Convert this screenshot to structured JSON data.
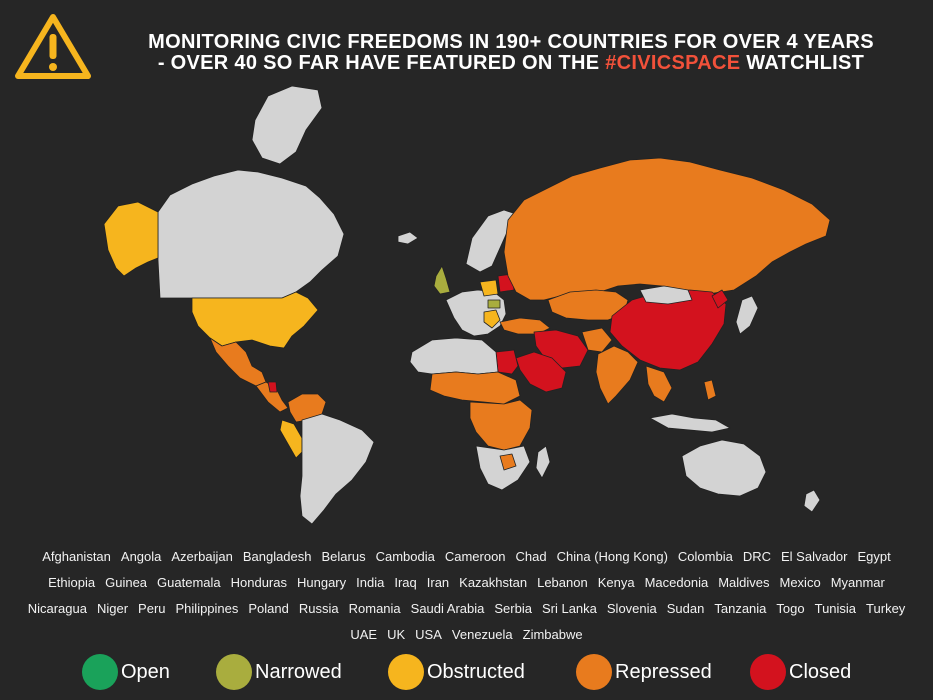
{
  "header": {
    "line1": "MONITORING CIVIC FREEDOMS IN 190+ COUNTRIES FOR OVER 4 YEARS",
    "line2_prefix": "-  OVER 40 SO FAR HAVE FEATURED ON THE",
    "hashtag": "#CIVICSPACE",
    "line2_suffix": "WATCHLIST",
    "icon": "warning-triangle-icon"
  },
  "colors": {
    "background": "#262626",
    "no_rating": "#d3d3d3",
    "open": "#1aa25a",
    "narrowed": "#a9ad3e",
    "obstructed": "#f6b51e",
    "repressed": "#e87b1e",
    "closed": "#d3121e",
    "hashtag": "#f2513a",
    "warning": "#f6b51e"
  },
  "watchlist": [
    "Afghanistan",
    "Angola",
    "Azerbaijan",
    "Bangladesh",
    "Belarus",
    "Cambodia",
    "Cameroon",
    "Chad",
    "China (Hong Kong)",
    "Colombia",
    "DRC",
    "El Salvador",
    "Egypt",
    "Ethiopia",
    "Guinea",
    "Guatemala",
    "Honduras",
    "Hungary",
    "India",
    "Iraq",
    "Iran",
    "Kazakhstan",
    "Lebanon",
    "Kenya",
    "Macedonia",
    "Maldives",
    "Mexico",
    "Myanmar",
    "Nicaragua",
    "Niger",
    "Peru",
    "Philippines",
    "Poland",
    "Russia",
    "Romania",
    "Saudi Arabia",
    "Serbia",
    "Sri Lanka",
    "Slovenia",
    "Sudan",
    "Tanzania",
    "Togo",
    "Tunisia",
    "Turkey",
    "UAE",
    "UK",
    "USA",
    "Venezuela",
    "Zimbabwe"
  ],
  "legend": [
    {
      "label": "Open",
      "color": "#1aa25a"
    },
    {
      "label": "Narrowed",
      "color": "#a9ad3e"
    },
    {
      "label": "Obstructed",
      "color": "#f6b51e"
    },
    {
      "label": "Repressed",
      "color": "#e87b1e"
    },
    {
      "label": "Closed",
      "color": "#d3121e"
    }
  ],
  "map": {
    "regions": [
      {
        "name": "greenland",
        "rating": "none"
      },
      {
        "name": "canada",
        "rating": "none"
      },
      {
        "name": "alaska",
        "rating": "obstructed"
      },
      {
        "name": "usa",
        "rating": "obstructed"
      },
      {
        "name": "mexico",
        "rating": "repressed"
      },
      {
        "name": "central-america",
        "rating": "repressed"
      },
      {
        "name": "nicaragua",
        "rating": "closed"
      },
      {
        "name": "colombia-venezuela",
        "rating": "repressed"
      },
      {
        "name": "peru",
        "rating": "obstructed"
      },
      {
        "name": "south-america",
        "rating": "none"
      },
      {
        "name": "iceland",
        "rating": "none"
      },
      {
        "name": "uk",
        "rating": "narrowed"
      },
      {
        "name": "scandinavia",
        "rating": "none"
      },
      {
        "name": "europe",
        "rating": "none"
      },
      {
        "name": "poland",
        "rating": "obstructed"
      },
      {
        "name": "belarus",
        "rating": "closed"
      },
      {
        "name": "hungary",
        "rating": "narrowed"
      },
      {
        "name": "balkans",
        "rating": "obstructed"
      },
      {
        "name": "russia",
        "rating": "repressed"
      },
      {
        "name": "kazakhstan",
        "rating": "repressed"
      },
      {
        "name": "china",
        "rating": "closed"
      },
      {
        "name": "mongolia",
        "rating": "none"
      },
      {
        "name": "north-korea",
        "rating": "closed"
      },
      {
        "name": "japan",
        "rating": "none"
      },
      {
        "name": "turkey",
        "rating": "repressed"
      },
      {
        "name": "iran",
        "rating": "closed"
      },
      {
        "name": "saudi-arabia",
        "rating": "closed"
      },
      {
        "name": "egypt",
        "rating": "closed"
      },
      {
        "name": "india",
        "rating": "repressed"
      },
      {
        "name": "afghanistan",
        "rating": "repressed"
      },
      {
        "name": "southeast-asia",
        "rating": "repressed"
      },
      {
        "name": "north-africa",
        "rating": "none"
      },
      {
        "name": "sahel",
        "rating": "repressed"
      },
      {
        "name": "central-africa",
        "rating": "repressed"
      },
      {
        "name": "southern-africa",
        "rating": "none"
      },
      {
        "name": "zimbabwe",
        "rating": "repressed"
      },
      {
        "name": "madagascar",
        "rating": "none"
      },
      {
        "name": "australia",
        "rating": "none"
      },
      {
        "name": "new-zealand",
        "rating": "none"
      },
      {
        "name": "indonesia",
        "rating": "none"
      },
      {
        "name": "philippines",
        "rating": "repressed"
      }
    ]
  }
}
